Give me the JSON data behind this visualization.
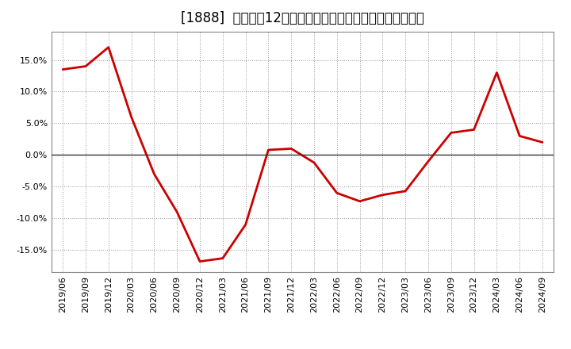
{
  "title": "[1888]  売上高の12か月移動合計の対前年同期増減率の推移",
  "line_color": "#cc0000",
  "background_color": "#ffffff",
  "plot_background_color": "#ffffff",
  "grid_color": "#999999",
  "zero_line_color": "#333333",
  "ylim": [
    -0.185,
    0.195
  ],
  "yticks": [
    -0.15,
    -0.1,
    -0.05,
    0.0,
    0.05,
    0.1,
    0.15
  ],
  "x_labels": [
    "2019/06",
    "2019/09",
    "2019/12",
    "2020/03",
    "2020/06",
    "2020/09",
    "2020/12",
    "2021/03",
    "2021/06",
    "2021/09",
    "2021/12",
    "2022/03",
    "2022/06",
    "2022/09",
    "2022/12",
    "2023/03",
    "2023/06",
    "2023/09",
    "2023/12",
    "2024/03",
    "2024/06",
    "2024/09"
  ],
  "x_values": [
    0,
    1,
    2,
    3,
    4,
    5,
    6,
    7,
    8,
    9,
    10,
    11,
    12,
    13,
    14,
    15,
    16,
    17,
    18,
    19,
    20,
    21
  ],
  "y_values": [
    0.135,
    0.14,
    0.17,
    0.06,
    -0.03,
    -0.09,
    -0.168,
    -0.163,
    -0.11,
    0.008,
    0.01,
    -0.012,
    -0.06,
    -0.073,
    -0.063,
    -0.057,
    -0.01,
    0.035,
    0.04,
    0.13,
    0.03,
    0.02
  ],
  "line_width": 2.0,
  "title_fontsize": 12,
  "tick_fontsize": 8
}
